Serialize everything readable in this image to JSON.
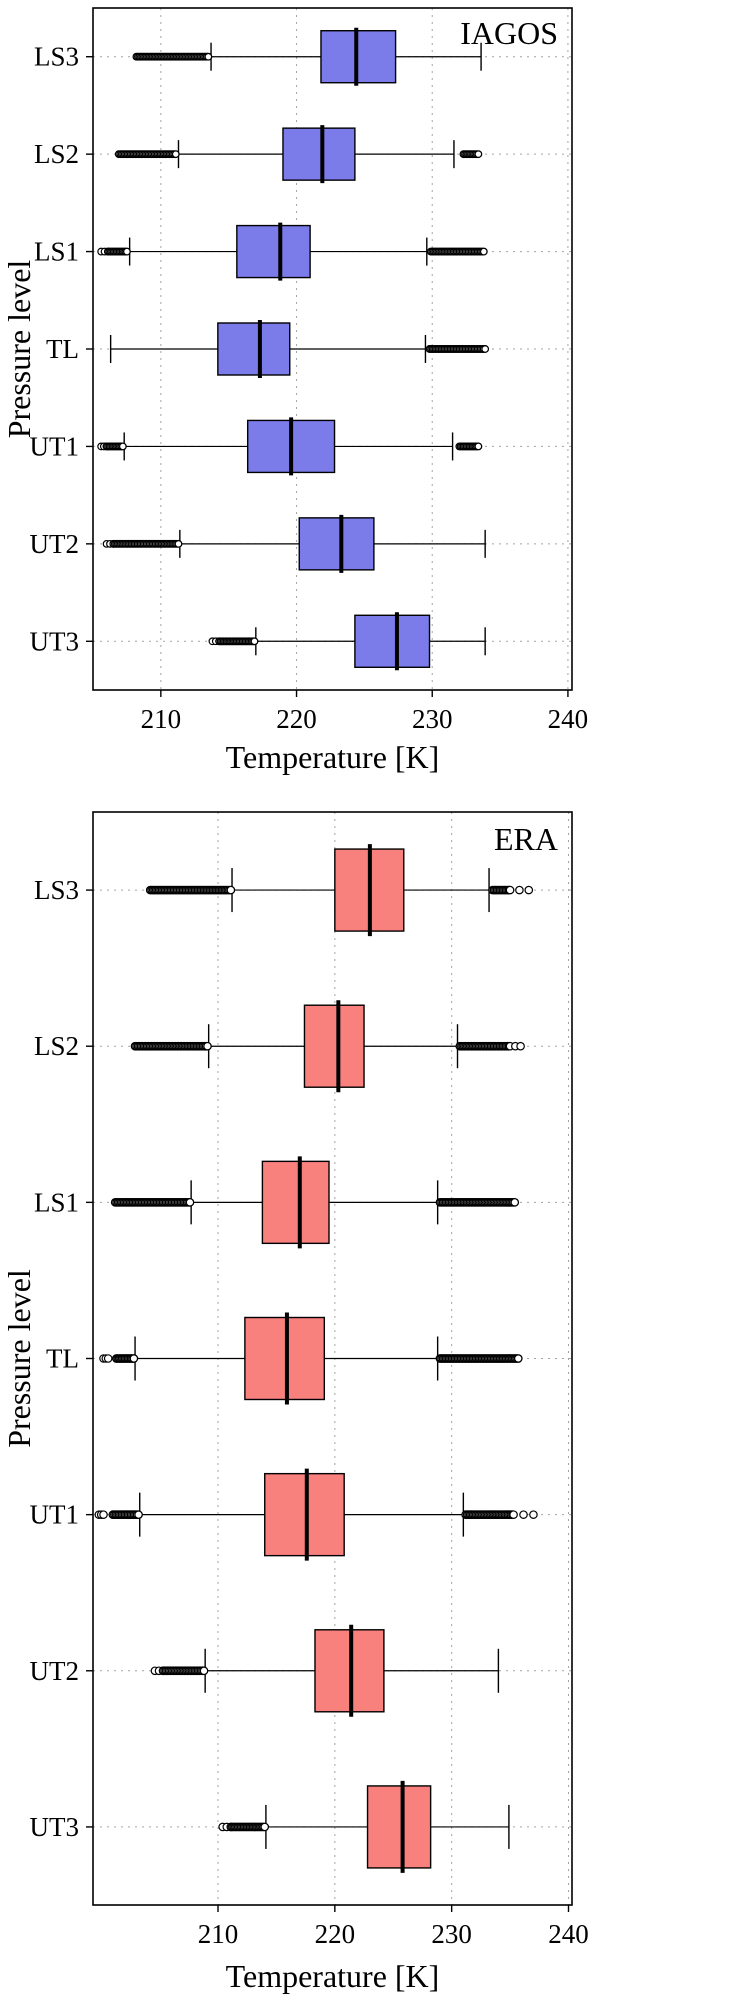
{
  "page": {
    "background": "#ffffff"
  },
  "chart_data": [
    {
      "type": "boxplot",
      "title": "IAGOS",
      "xlabel": "Temperature [K]",
      "ylabel": "Pressure level",
      "xlim": [
        205.0,
        240.3
      ],
      "xticks": [
        210,
        220,
        230,
        240
      ],
      "grid": true,
      "legend": "none",
      "categories": [
        "LS3",
        "LS2",
        "LS1",
        "TL",
        "UT1",
        "UT2",
        "UT3"
      ],
      "box_color": "#7b7bea",
      "box_edge_color": "#000000",
      "median_color": "#000000",
      "rows": [
        {
          "level": "LS3",
          "whisker_lo": 213.7,
          "q1": 221.8,
          "median": 224.4,
          "q3": 227.3,
          "whisker_hi": 233.6,
          "fliers_lo": [
            {
              "from": 208.2,
              "to": 213.5,
              "density": "dense"
            }
          ],
          "fliers_hi": []
        },
        {
          "level": "LS2",
          "whisker_lo": 211.3,
          "q1": 219.0,
          "median": 221.9,
          "q3": 224.3,
          "whisker_hi": 231.6,
          "fliers_lo": [
            {
              "from": 206.9,
              "to": 211.1,
              "density": "dense"
            }
          ],
          "fliers_hi": [
            {
              "from": 232.3,
              "to": 233.4,
              "density": "dense"
            }
          ]
        },
        {
          "level": "LS1",
          "whisker_lo": 207.7,
          "q1": 215.6,
          "median": 218.8,
          "q3": 221.0,
          "whisker_hi": 229.6,
          "fliers_lo": [
            {
              "from": 205.6,
              "to": 206.1,
              "density": "sparse"
            },
            {
              "from": 206.1,
              "to": 207.5,
              "density": "dense"
            }
          ],
          "fliers_hi": [
            {
              "from": 229.9,
              "to": 233.8,
              "density": "dense"
            }
          ]
        },
        {
          "level": "TL",
          "whisker_lo": 206.3,
          "q1": 214.2,
          "median": 217.3,
          "q3": 219.5,
          "whisker_hi": 229.5,
          "fliers_lo": [],
          "fliers_hi": [
            {
              "from": 229.8,
              "to": 233.9,
              "density": "dense"
            }
          ]
        },
        {
          "level": "UT1",
          "whisker_lo": 207.3,
          "q1": 216.4,
          "median": 219.6,
          "q3": 222.8,
          "whisker_hi": 231.5,
          "fliers_lo": [
            {
              "from": 205.6,
              "to": 206.0,
              "density": "sparse"
            },
            {
              "from": 206.0,
              "to": 207.2,
              "density": "dense"
            }
          ],
          "fliers_hi": [
            {
              "from": 232.0,
              "to": 233.4,
              "density": "dense"
            }
          ]
        },
        {
          "level": "UT2",
          "whisker_lo": 211.4,
          "q1": 220.2,
          "median": 223.3,
          "q3": 225.7,
          "whisker_hi": 233.9,
          "fliers_lo": [
            {
              "from": 206.0,
              "to": 206.5,
              "density": "sparse"
            },
            {
              "from": 206.5,
              "to": 211.3,
              "density": "dense"
            }
          ],
          "fliers_hi": []
        },
        {
          "level": "UT3",
          "whisker_lo": 217.0,
          "q1": 224.3,
          "median": 227.4,
          "q3": 229.8,
          "whisker_hi": 233.9,
          "fliers_lo": [
            {
              "from": 213.8,
              "to": 214.3,
              "density": "sparse"
            },
            {
              "from": 214.3,
              "to": 216.9,
              "density": "dense"
            }
          ],
          "fliers_hi": []
        }
      ]
    },
    {
      "type": "boxplot",
      "title": "ERA",
      "xlabel": "Temperature [K]",
      "ylabel": "Pressure level",
      "xlim": [
        199.3,
        240.3
      ],
      "xticks": [
        210,
        220,
        230,
        240
      ],
      "grid": true,
      "legend": "none",
      "categories": [
        "LS3",
        "LS2",
        "LS1",
        "TL",
        "UT1",
        "UT2",
        "UT3"
      ],
      "box_color": "#f8807d",
      "box_edge_color": "#000000",
      "median_color": "#000000",
      "rows": [
        {
          "level": "LS3",
          "whisker_lo": 211.2,
          "q1": 220.0,
          "median": 223.0,
          "q3": 225.9,
          "whisker_hi": 233.2,
          "fliers_lo": [
            {
              "from": 204.2,
              "to": 211.1,
              "density": "dense"
            }
          ],
          "fliers_hi": [
            {
              "from": 233.5,
              "to": 234.9,
              "density": "dense"
            },
            {
              "from": 235.0,
              "to": 236.6,
              "density": "sparse"
            }
          ]
        },
        {
          "level": "LS2",
          "whisker_lo": 209.2,
          "q1": 217.4,
          "median": 220.3,
          "q3": 222.5,
          "whisker_hi": 230.5,
          "fliers_lo": [
            {
              "from": 202.9,
              "to": 209.1,
              "density": "dense"
            }
          ],
          "fliers_hi": [
            {
              "from": 230.7,
              "to": 234.9,
              "density": "dense"
            },
            {
              "from": 235.0,
              "to": 235.9,
              "density": "sparse"
            }
          ]
        },
        {
          "level": "LS1",
          "whisker_lo": 207.7,
          "q1": 213.8,
          "median": 217.0,
          "q3": 219.5,
          "whisker_hi": 228.8,
          "fliers_lo": [
            {
              "from": 201.2,
              "to": 207.6,
              "density": "dense"
            }
          ],
          "fliers_hi": [
            {
              "from": 229.0,
              "to": 235.4,
              "density": "dense"
            }
          ]
        },
        {
          "level": "TL",
          "whisker_lo": 202.9,
          "q1": 212.3,
          "median": 215.9,
          "q3": 219.1,
          "whisker_hi": 228.8,
          "fliers_lo": [
            {
              "from": 200.2,
              "to": 200.6,
              "density": "sparse"
            },
            {
              "from": 201.3,
              "to": 202.8,
              "density": "dense"
            }
          ],
          "fliers_hi": [
            {
              "from": 229.0,
              "to": 235.7,
              "density": "dense"
            }
          ]
        },
        {
          "level": "UT1",
          "whisker_lo": 203.3,
          "q1": 214.0,
          "median": 217.6,
          "q3": 220.8,
          "whisker_hi": 231.0,
          "fliers_lo": [
            {
              "from": 199.8,
              "to": 200.2,
              "density": "sparse"
            },
            {
              "from": 201.0,
              "to": 203.2,
              "density": "dense"
            }
          ],
          "fliers_hi": [
            {
              "from": 231.2,
              "to": 235.2,
              "density": "dense"
            },
            {
              "from": 235.3,
              "to": 237.0,
              "density": "sparse"
            }
          ]
        },
        {
          "level": "UT2",
          "whisker_lo": 208.9,
          "q1": 218.3,
          "median": 221.4,
          "q3": 224.2,
          "whisker_hi": 234.0,
          "fliers_lo": [
            {
              "from": 204.6,
              "to": 205.3,
              "density": "sparse"
            },
            {
              "from": 205.3,
              "to": 208.8,
              "density": "dense"
            }
          ],
          "fliers_hi": []
        },
        {
          "level": "UT3",
          "whisker_lo": 214.1,
          "q1": 222.8,
          "median": 225.8,
          "q3": 228.2,
          "whisker_hi": 234.9,
          "fliers_lo": [
            {
              "from": 210.4,
              "to": 211.1,
              "density": "sparse"
            },
            {
              "from": 211.1,
              "to": 214.0,
              "density": "dense"
            }
          ],
          "fliers_hi": []
        }
      ]
    }
  ]
}
